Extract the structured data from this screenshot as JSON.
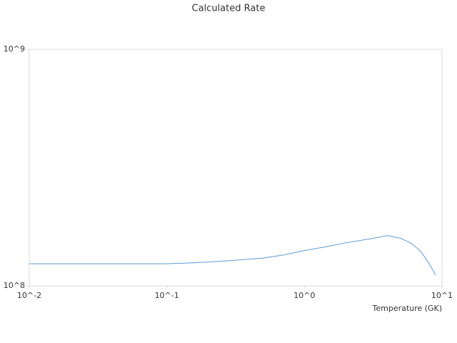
{
  "chart_data": {
    "type": "line",
    "title": "Calculated Rate",
    "x_label": "Temperature (GK)",
    "x": [
      0.01,
      0.02,
      0.05,
      0.1,
      0.15,
      0.2,
      0.3,
      0.5,
      0.7,
      1,
      1.5,
      2,
      3,
      4,
      5,
      6,
      7,
      8,
      9
    ],
    "series": [
      {
        "color": "#5b9bd5",
        "values": [
          124000000,
          124000000,
          124000000,
          124000000,
          125000000,
          126000000,
          128000000,
          131000000,
          135000000,
          141000000,
          147000000,
          152000000,
          158000000,
          163000000,
          159000000,
          151000000,
          140000000,
          125000000,
          111000000
        ]
      }
    ],
    "xlim": [
      0.01,
      10
    ],
    "ylim": [
      100000000,
      1000000000
    ],
    "xscale": "log",
    "yscale": "log",
    "xticks": [
      {
        "value": 0.01,
        "label": "10^-2"
      },
      {
        "value": 0.1,
        "label": "10^-1"
      },
      {
        "value": 1,
        "label": "10^0"
      },
      {
        "value": 10,
        "label": "10^1"
      }
    ],
    "yticks": [
      {
        "value": 100000000,
        "label": "10^8"
      },
      {
        "value": 1000000000,
        "label": "10^9"
      }
    ]
  }
}
